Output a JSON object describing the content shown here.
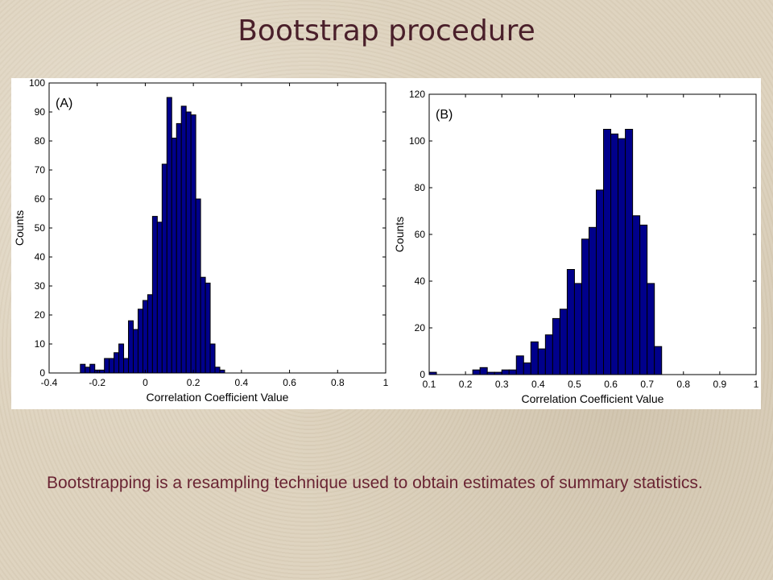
{
  "slide": {
    "title": "Bootstrap procedure",
    "caption": "Bootstrapping is a resampling technique used to obtain estimates of summary statistics."
  },
  "colors": {
    "bar_fill": "#00008b",
    "bar_stroke": "#000000",
    "title": "#4a1f2a",
    "caption": "#6a2433"
  },
  "chart_data": [
    {
      "type": "bar",
      "panel_label": "(A)",
      "xlabel": "Correlation Coefficient Value",
      "ylabel": "Counts",
      "xlim": [
        -0.4,
        1
      ],
      "ylim": [
        0,
        100
      ],
      "xticks": [
        -0.4,
        -0.2,
        0,
        0.2,
        0.4,
        0.6,
        0.8,
        1
      ],
      "yticks": [
        0,
        10,
        20,
        30,
        40,
        50,
        60,
        70,
        80,
        90,
        100
      ],
      "xtick_labels": [
        "-0.4",
        "-0.2",
        "0",
        "0.2",
        "0.4",
        "0.6",
        "0.8",
        "1"
      ],
      "ytick_labels": [
        "0",
        "10",
        "20",
        "30",
        "40",
        "50",
        "60",
        "70",
        "80",
        "90",
        "100"
      ],
      "bin_start": -0.27,
      "bin_width": 0.02,
      "values": [
        3,
        2,
        3,
        1,
        1,
        5,
        5,
        7,
        10,
        5,
        18,
        15,
        22,
        25,
        27,
        54,
        52,
        72,
        95,
        81,
        86,
        92,
        90,
        89,
        60,
        33,
        31,
        10,
        2,
        1
      ]
    },
    {
      "type": "bar",
      "panel_label": "(B)",
      "xlabel": "Correlation Coefficient Value",
      "ylabel": "Counts",
      "xlim": [
        0.1,
        1
      ],
      "ylim": [
        0,
        120
      ],
      "xticks": [
        0.1,
        0.2,
        0.3,
        0.4,
        0.5,
        0.6,
        0.7,
        0.8,
        0.9,
        1
      ],
      "yticks": [
        0,
        20,
        40,
        60,
        80,
        100,
        120
      ],
      "xtick_labels": [
        "0.1",
        "0.2",
        "0.3",
        "0.4",
        "0.5",
        "0.6",
        "0.7",
        "0.8",
        "0.9",
        "1"
      ],
      "ytick_labels": [
        "0",
        "20",
        "40",
        "60",
        "80",
        "100",
        "120"
      ],
      "bin_start": 0.1,
      "bin_width": 0.02,
      "values": [
        1,
        0,
        0,
        0,
        0,
        0,
        2,
        3,
        1,
        1,
        2,
        2,
        8,
        5,
        14,
        11,
        17,
        24,
        28,
        45,
        39,
        58,
        63,
        79,
        105,
        103,
        101,
        105,
        68,
        64,
        39,
        12
      ]
    }
  ]
}
